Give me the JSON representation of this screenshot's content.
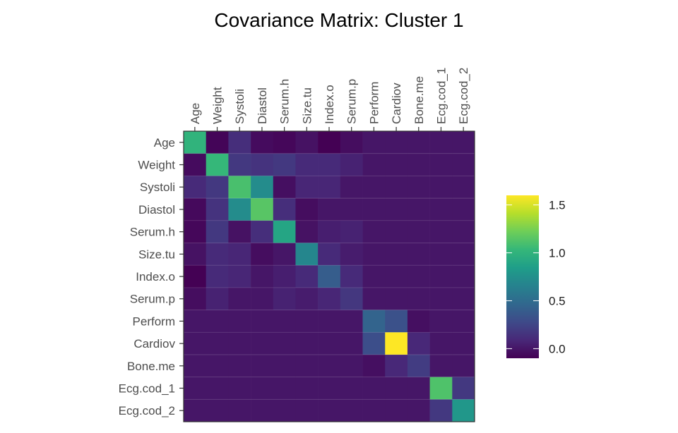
{
  "chart_data": {
    "type": "heatmap",
    "title": "Covariance Matrix: Cluster 1",
    "xlabel": "",
    "ylabel": "",
    "variables": [
      "Age",
      "Weight",
      "Systoli",
      "Diastol",
      "Serum.h",
      "Size.tu",
      "Index.o",
      "Serum.p",
      "Perform",
      "Cardiov",
      "Bone.me",
      "Ecg.cod_1",
      "Ecg.cod_2"
    ],
    "values": [
      [
        1.0,
        -0.08,
        0.12,
        -0.05,
        -0.07,
        -0.02,
        -0.1,
        -0.04,
        0.0,
        0.0,
        0.0,
        0.0,
        0.0
      ],
      [
        -0.05,
        1.03,
        0.18,
        0.15,
        0.18,
        0.1,
        0.1,
        0.06,
        0.0,
        0.0,
        0.0,
        0.0,
        0.0
      ],
      [
        0.1,
        0.18,
        1.1,
        0.72,
        -0.03,
        0.08,
        0.08,
        0.0,
        0.0,
        0.0,
        0.0,
        0.0,
        0.0
      ],
      [
        -0.06,
        0.15,
        0.72,
        1.15,
        0.12,
        -0.04,
        0.0,
        0.0,
        0.0,
        0.0,
        0.0,
        0.0,
        0.0
      ],
      [
        -0.07,
        0.18,
        -0.02,
        0.12,
        0.9,
        -0.02,
        0.04,
        0.06,
        0.0,
        0.0,
        0.0,
        0.0,
        0.0
      ],
      [
        -0.02,
        0.1,
        0.08,
        -0.04,
        0.0,
        0.68,
        0.1,
        0.03,
        0.0,
        0.0,
        0.0,
        0.0,
        0.0
      ],
      [
        -0.1,
        0.1,
        0.08,
        0.0,
        0.04,
        0.1,
        0.4,
        0.1,
        0.0,
        0.0,
        0.0,
        0.0,
        0.0
      ],
      [
        -0.04,
        0.06,
        0.0,
        0.0,
        0.06,
        0.03,
        0.08,
        0.17,
        0.0,
        0.0,
        0.0,
        0.0,
        0.0
      ],
      [
        0.0,
        0.0,
        0.0,
        0.0,
        0.0,
        0.0,
        0.0,
        0.0,
        0.44,
        0.32,
        -0.03,
        0.0,
        0.0
      ],
      [
        0.0,
        0.0,
        0.0,
        0.0,
        0.0,
        0.0,
        0.0,
        0.0,
        0.3,
        1.6,
        0.09,
        0.0,
        0.0
      ],
      [
        0.0,
        0.0,
        0.0,
        0.0,
        0.0,
        0.0,
        0.0,
        0.0,
        -0.03,
        0.09,
        0.2,
        0.0,
        0.0
      ],
      [
        0.0,
        0.0,
        0.0,
        0.0,
        0.0,
        0.0,
        0.0,
        0.0,
        0.0,
        0.0,
        0.0,
        1.12,
        0.18
      ],
      [
        0.0,
        0.0,
        0.0,
        0.0,
        0.0,
        0.0,
        0.0,
        0.0,
        0.0,
        0.0,
        0.0,
        0.18,
        0.8
      ]
    ],
    "color_scale": {
      "name": "viridis",
      "min": -0.1,
      "max": 1.6,
      "ticks": [
        0.0,
        0.5,
        1.0,
        1.5
      ],
      "tick_labels": [
        "0.0",
        "0.5",
        "1.0",
        "1.5"
      ]
    },
    "x_axis_position": "top",
    "legend_position": "right",
    "grid": false
  }
}
